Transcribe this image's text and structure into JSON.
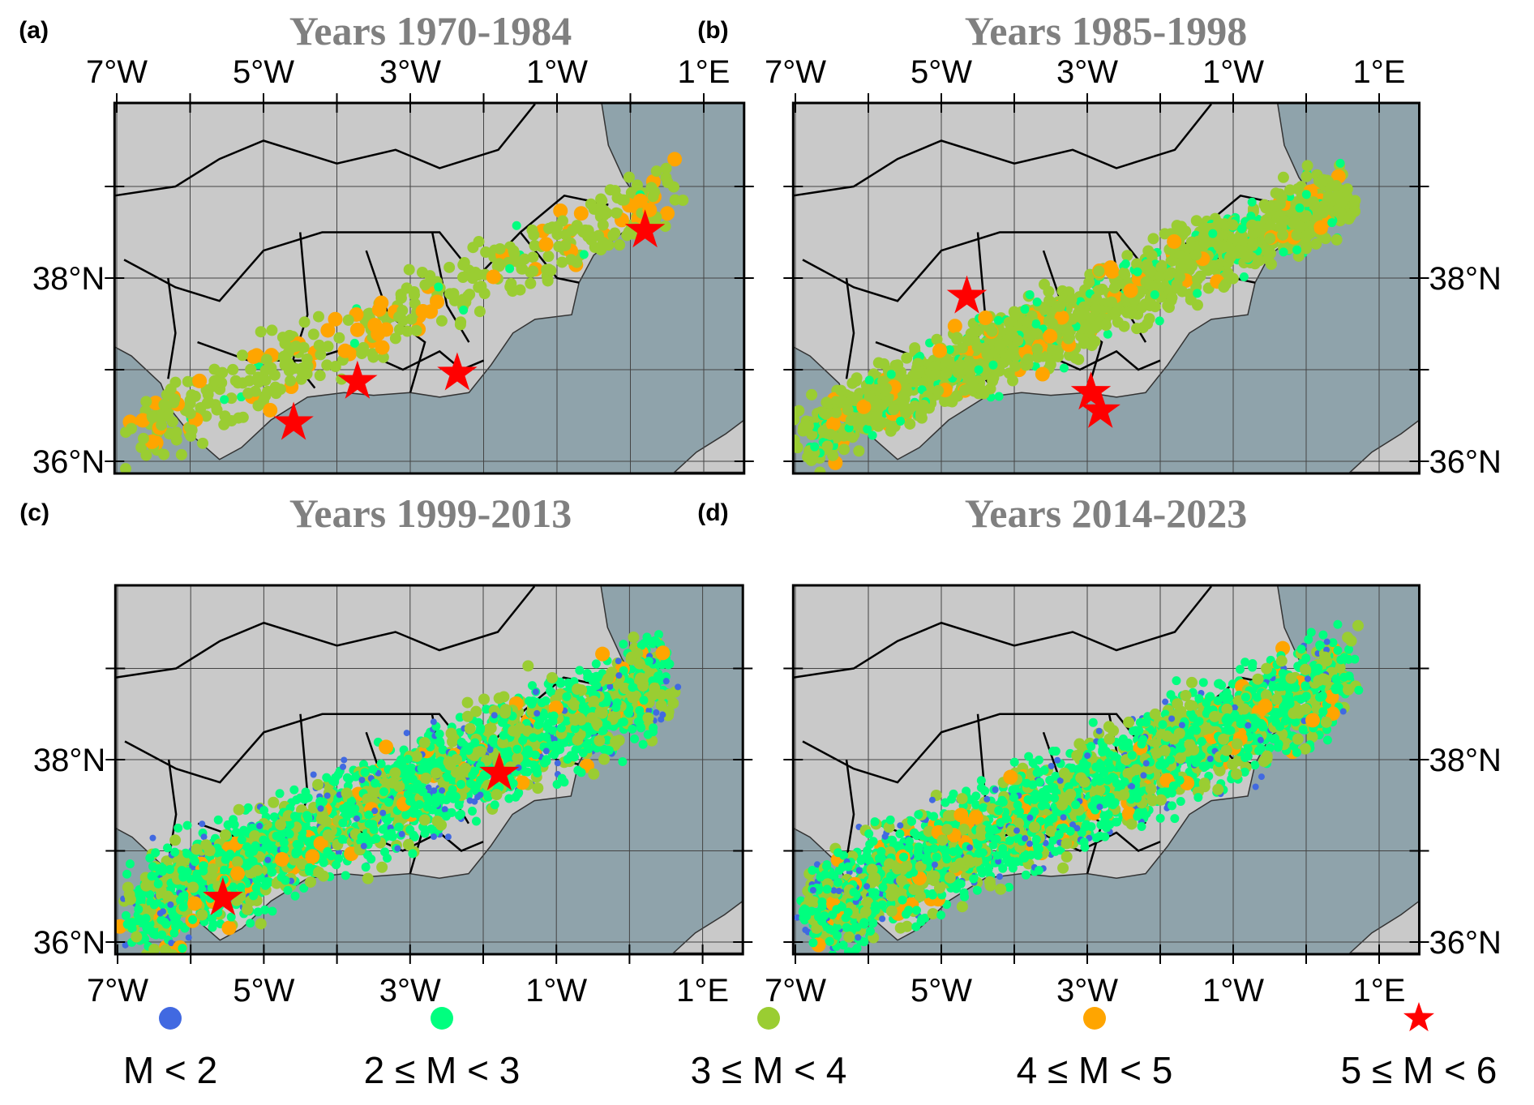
{
  "panels": [
    {
      "label": "(a)",
      "title": "Years 1970-1984",
      "lon_axis": "top",
      "lat_axis": "left",
      "stars": [
        [
          0.2,
          38.52
        ],
        [
          -3.72,
          36.87
        ],
        [
          -2.36,
          36.96
        ],
        [
          -4.59,
          36.42
        ]
      ]
    },
    {
      "label": "(b)",
      "title": "Years 1985-1998",
      "lon_axis": "top",
      "lat_axis": "right",
      "stars": [
        [
          -4.65,
          37.8
        ],
        [
          -2.95,
          36.75
        ],
        [
          -2.82,
          36.55
        ]
      ]
    },
    {
      "label": "(c)",
      "title": "Years 1999-2013",
      "lon_axis": "bottom",
      "lat_axis": "left",
      "stars": [
        [
          -1.78,
          37.85
        ],
        [
          -5.56,
          36.48
        ]
      ]
    },
    {
      "label": "(d)",
      "title": "Years 2014-2023",
      "lon_axis": "bottom",
      "lat_axis": "right",
      "stars": []
    }
  ],
  "lon_ticks": [
    {
      "value": -7,
      "label": "7°W"
    },
    {
      "value": -5,
      "label": "5°W"
    },
    {
      "value": -3,
      "label": "3°W"
    },
    {
      "value": -1,
      "label": "1°W"
    },
    {
      "value": 1,
      "label": "1°E"
    }
  ],
  "lat_ticks": [
    {
      "value": 38,
      "label": "38°N"
    },
    {
      "value": 36,
      "label": "36°N"
    }
  ],
  "legend": [
    {
      "label": "M < 2",
      "color": "#4169e1",
      "marker": "circle"
    },
    {
      "label": "2 ≤ M < 3",
      "color": "#00ff7f",
      "marker": "circle"
    },
    {
      "label": "3 ≤ M < 4",
      "color": "#9acd32",
      "marker": "circle"
    },
    {
      "label": "4 ≤ M < 5",
      "color": "#ffa500",
      "marker": "circle"
    },
    {
      "label": "5 ≤ M < 6",
      "color": "#ff0000",
      "marker": "star"
    }
  ],
  "colors": {
    "sea": "#8fa3ab",
    "land": "#c9c9c9",
    "title": "#808080"
  }
}
